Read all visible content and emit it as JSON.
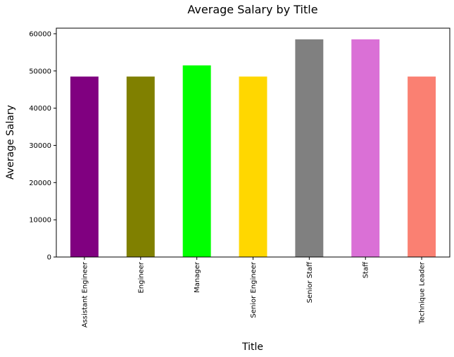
{
  "chart_data": {
    "type": "bar",
    "title": "Average Salary by Title",
    "xlabel": "Title",
    "ylabel": "Average Salary",
    "categories": [
      "Assistant Engineer",
      "Engineer",
      "Manager",
      "Senior Engineer",
      "Senior Staff",
      "Staff",
      "Technique Leader"
    ],
    "values": [
      48500,
      48500,
      51500,
      48500,
      58500,
      58500,
      48500
    ],
    "colors": [
      "#800080",
      "#808000",
      "#00ff00",
      "#ffd700",
      "#808080",
      "#da70d6",
      "#fa8072"
    ],
    "ylim": [
      0,
      61500
    ],
    "yticks": [
      0,
      10000,
      20000,
      30000,
      40000,
      50000,
      60000
    ],
    "grid": false,
    "legend": "none"
  }
}
